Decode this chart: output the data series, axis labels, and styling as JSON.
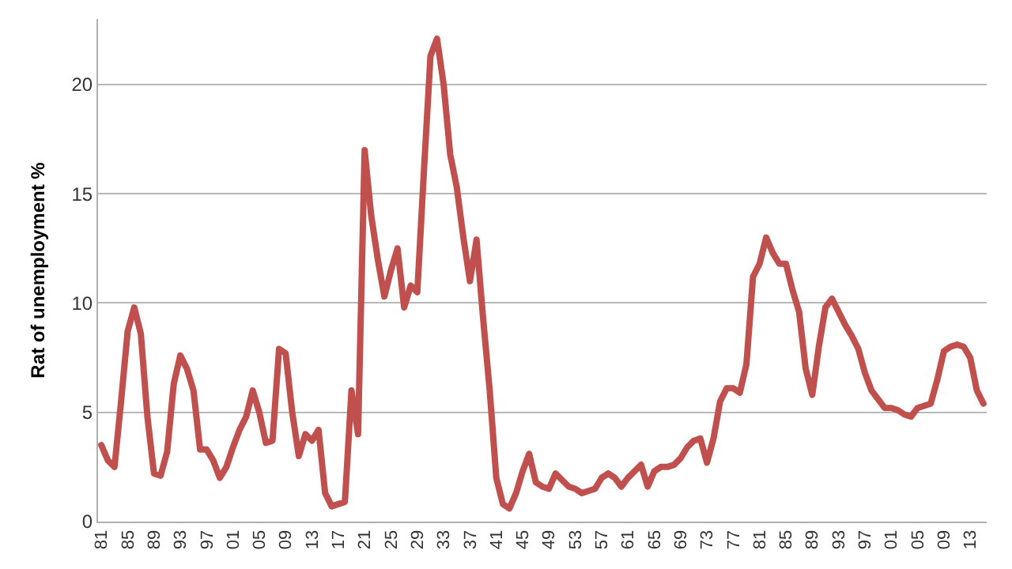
{
  "chart_data": {
    "type": "line",
    "ylabel": "Rat of unemployment %",
    "categories": [
      "81",
      null,
      null,
      null,
      "85",
      null,
      null,
      null,
      "89",
      null,
      null,
      null,
      "93",
      null,
      null,
      null,
      "97",
      null,
      null,
      null,
      "01",
      null,
      null,
      null,
      "05",
      null,
      null,
      null,
      "09",
      null,
      null,
      null,
      "13",
      null,
      null,
      null,
      "17",
      null,
      null,
      null,
      "21",
      null,
      null,
      null,
      "25",
      null,
      null,
      null,
      "29",
      null,
      null,
      null,
      "33",
      null,
      null,
      null,
      "37",
      null,
      null,
      null,
      "41",
      null,
      null,
      null,
      "45",
      null,
      null,
      null,
      "49",
      null,
      null,
      null,
      "53",
      null,
      null,
      null,
      "57",
      null,
      null,
      null,
      "61",
      null,
      null,
      null,
      "65",
      null,
      null,
      null,
      "69",
      null,
      null,
      null,
      "73",
      null,
      null,
      null,
      "77",
      null,
      null,
      null,
      "81",
      null,
      null,
      null,
      "85",
      null,
      null,
      null,
      "89",
      null,
      null,
      null,
      "93",
      null,
      null,
      null,
      "97",
      null,
      null,
      null,
      "01",
      null,
      null,
      null,
      "05",
      null,
      null,
      null,
      "09",
      null,
      null,
      null,
      "13",
      null,
      null
    ],
    "series": [
      {
        "color": "#c0504d",
        "values": [
          3.5,
          2.8,
          2.5,
          5.5,
          8.7,
          9.8,
          8.6,
          4.8,
          2.2,
          2.1,
          3.2,
          6.3,
          7.6,
          7,
          6,
          3.3,
          3.3,
          2.8,
          2,
          2.5,
          3.4,
          4.2,
          4.8,
          6,
          5,
          3.6,
          3.7,
          7.9,
          7.7,
          5,
          3,
          4,
          3.7,
          4.2,
          1.3,
          0.7,
          0.8,
          0.9,
          6,
          4,
          17,
          14,
          12,
          10.3,
          11.5,
          12.5,
          9.8,
          10.8,
          10.5,
          16,
          21.3,
          22.1,
          20,
          16.8,
          15.3,
          13,
          11,
          12.9,
          9.3,
          6,
          2,
          0.8,
          0.6,
          1.3,
          2.3,
          3.1,
          1.8,
          1.6,
          1.5,
          2.2,
          1.9,
          1.6,
          1.5,
          1.3,
          1.4,
          1.5,
          2,
          2.2,
          2,
          1.6,
          2,
          2.3,
          2.6,
          1.6,
          2.3,
          2.5,
          2.5,
          2.6,
          2.9,
          3.4,
          3.7,
          3.8,
          2.7,
          3.8,
          5.5,
          6.1,
          6.1,
          5.9,
          7.2,
          11.2,
          11.8,
          13,
          12.3,
          11.8,
          11.8,
          10.6,
          9.6,
          7,
          5.8,
          8,
          9.8,
          10.2,
          9.6,
          9,
          8.5,
          7.9,
          6.8,
          6,
          5.6,
          5.2,
          5.2,
          5.1,
          4.9,
          4.8,
          5.2,
          5.3,
          5.4,
          6.5,
          7.8,
          8,
          8.1,
          8,
          7.5,
          6,
          5.4
        ]
      }
    ],
    "ylim": [
      0,
      23
    ],
    "yticks": [
      0,
      5,
      10,
      15,
      20
    ],
    "grid": "y",
    "marker": "none",
    "line_style": "solid"
  }
}
